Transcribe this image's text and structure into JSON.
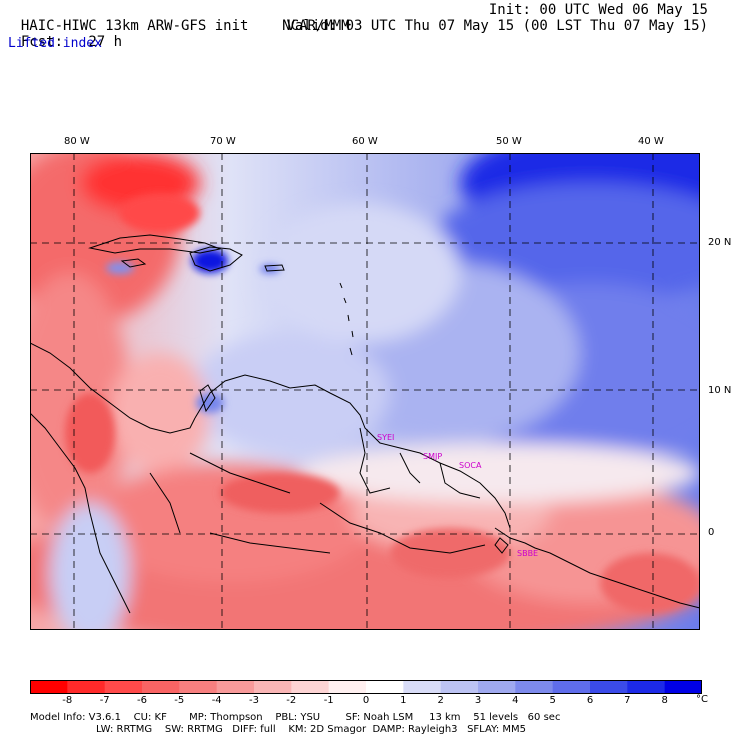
{
  "header": {
    "model_line": "HAIC-HIWC 13km ARW-GFS init",
    "org": "NCAR/MMM",
    "fcst_label": "Fcst:",
    "fcst_value": "27 h",
    "init_line": "Init: 00 UTC Wed 06 May 15",
    "valid_line": "Valid: 03 UTC Thu 07 May 15 (00 LST Thu 07 May 15)",
    "field_name": "Lifted index"
  },
  "map": {
    "lon_labels": [
      "80 W",
      "70 W",
      "60 W",
      "50 W",
      "40 W"
    ],
    "lat_labels": [
      "20 N",
      "10 N",
      "0"
    ],
    "station_labels": [
      "SYEI",
      "SMJP",
      "SOCA",
      "SBBE"
    ],
    "colors": {
      "negative_strong": "#ff2020",
      "negative_mid": "#f58080",
      "negative_weak": "#fbc8c8",
      "neutral": "#ffffff",
      "positive_weak": "#c8cff5",
      "positive_mid": "#7b8df0",
      "positive_strong": "#0000ee",
      "coastline": "#000000",
      "station_label": "#cc00cc"
    }
  },
  "colorbar": {
    "ticks": [
      "-8",
      "-7",
      "-6",
      "-5",
      "-4",
      "-3",
      "-2",
      "-1",
      "0",
      "1",
      "2",
      "3",
      "4",
      "5",
      "6",
      "7",
      "8"
    ],
    "unit": "°C",
    "colors": [
      "#ff0000",
      "#ff2a2a",
      "#ff4a4a",
      "#f96464",
      "#f77f7f",
      "#f89a9a",
      "#fab6b6",
      "#fdd4d4",
      "#fff0f0",
      "#ffffff",
      "#d8dcf7",
      "#bcc3f3",
      "#9fa9ef",
      "#7d8aec",
      "#5f6deb",
      "#3b4be9",
      "#1d2ae8",
      "#0000e6"
    ]
  },
  "footer": {
    "line1": "Model Info: V3.6.1    CU: KF       MP: Thompson    PBL: YSU        SF: Noah LSM     13 km    51 levels   60 sec",
    "line2": "LW: RRTMG    SW: RRTMG   DIFF: full    KM: 2D Smagor  DAMP: Rayleigh3   SFLAY: MM5"
  }
}
